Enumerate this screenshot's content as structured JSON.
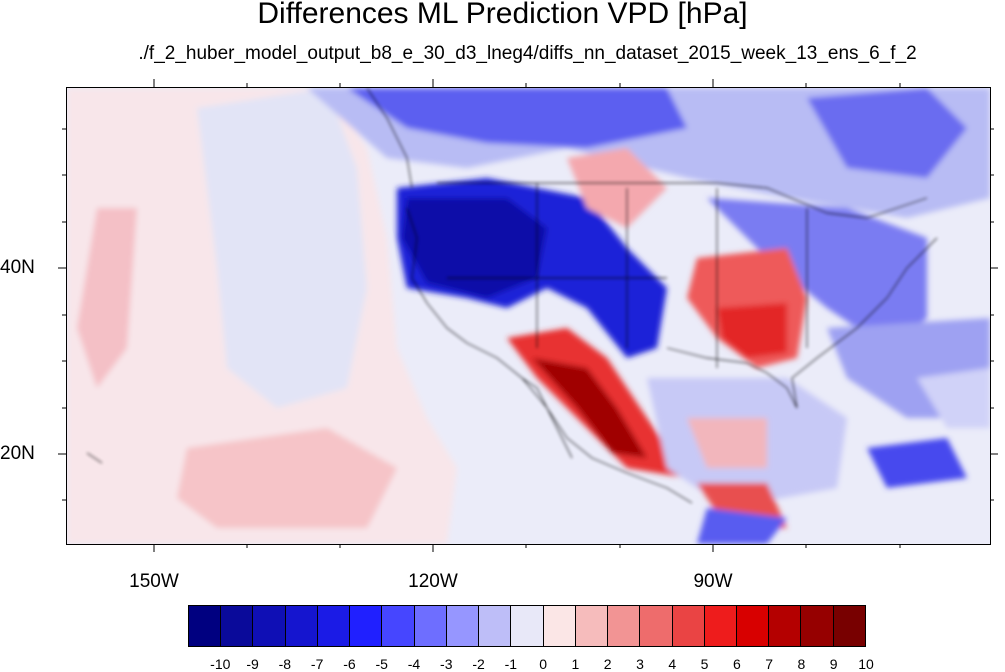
{
  "title": "Differences ML Prediction VPD [hPa]",
  "subtitle": "./f_2_huber_model_output_b8_e_30_d3_lneg4/diffs_nn_dataset_2015_week_13_ens_6_f_2",
  "map": {
    "projection": "cylindrical-equidistant",
    "lon_range": [
      -159.5,
      -60.5
    ],
    "lat_range": [
      10.5,
      59.5
    ],
    "lat_ticks": [
      "20N",
      "40N"
    ],
    "lon_ticks": [
      "150W",
      "120W",
      "90W"
    ],
    "field_variable": "VPD difference",
    "units": "hPa"
  },
  "colorbar": {
    "labels": [
      "-10",
      "-9",
      "-8",
      "-7",
      "-6",
      "-5",
      "-4",
      "-3",
      "-2",
      "-1",
      "0",
      "1",
      "2",
      "3",
      "4",
      "5",
      "6",
      "7",
      "8",
      "9",
      "10"
    ],
    "colors": [
      "#000080",
      "#0a0a9a",
      "#0f0fb5",
      "#1515cf",
      "#1b1be6",
      "#2020ff",
      "#4646ff",
      "#6e6eff",
      "#9696ff",
      "#bebef8",
      "#e8e8f8",
      "#fbe6e6",
      "#f6bcbc",
      "#f29494",
      "#ee6c6c",
      "#ea4444",
      "#ee1c1c",
      "#d80000",
      "#b40000",
      "#960000",
      "#780000"
    ]
  }
}
